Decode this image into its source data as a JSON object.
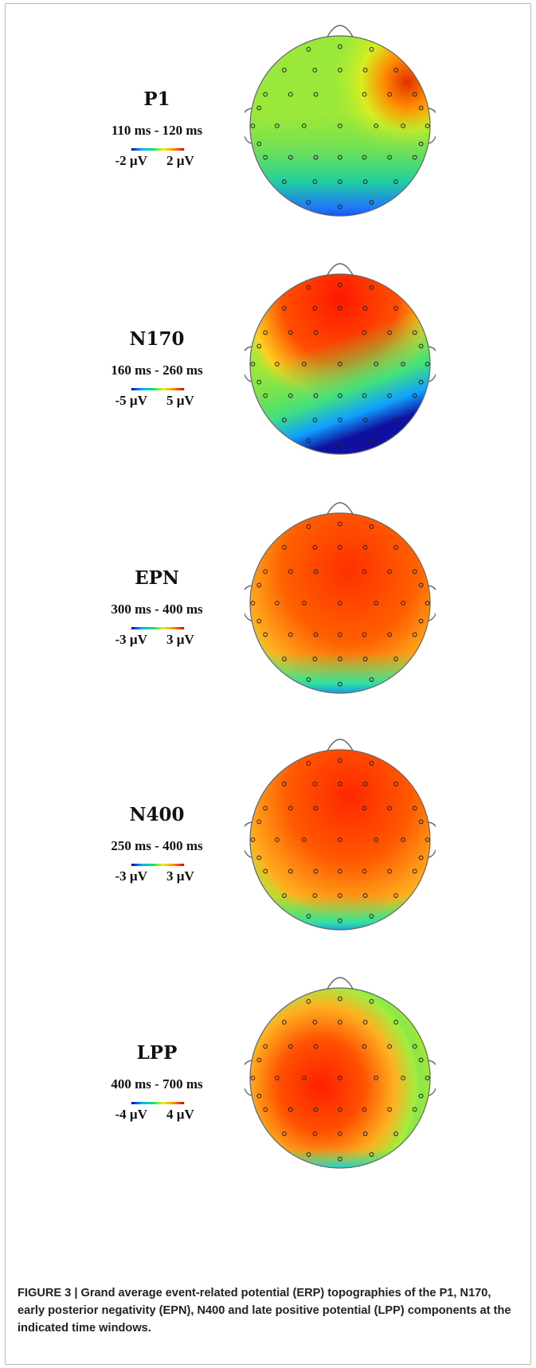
{
  "panels": [
    {
      "component": "P1",
      "time_window": "110 ms - 120 ms",
      "scale_min": "-2 µV",
      "scale_max": "2 µV",
      "pattern": "p1"
    },
    {
      "component": "N170",
      "time_window": "160 ms - 260 ms",
      "scale_min": "-5 µV",
      "scale_max": "5 µV",
      "pattern": "n170"
    },
    {
      "component": "EPN",
      "time_window": "300 ms - 400 ms",
      "scale_min": "-3 µV",
      "scale_max": "3 µV",
      "pattern": "epn"
    },
    {
      "component": "N400",
      "time_window": "250 ms - 400 ms",
      "scale_min": "-3 µV",
      "scale_max": "3 µV",
      "pattern": "n400"
    },
    {
      "component": "LPP",
      "time_window": "400 ms - 700 ms",
      "scale_min": "-4 µV",
      "scale_max": "4 µV",
      "pattern": "lpp"
    }
  ],
  "caption": {
    "label": "FIGURE 3 |",
    "text": "Grand average event-related potential (ERP) topographies of the P1, N170, early posterior negativity (EPN), N400 and late positive potential (LPP) components at the indicated time windows."
  },
  "colors": {
    "caption": "#222222",
    "border": "#b9b9b9"
  }
}
